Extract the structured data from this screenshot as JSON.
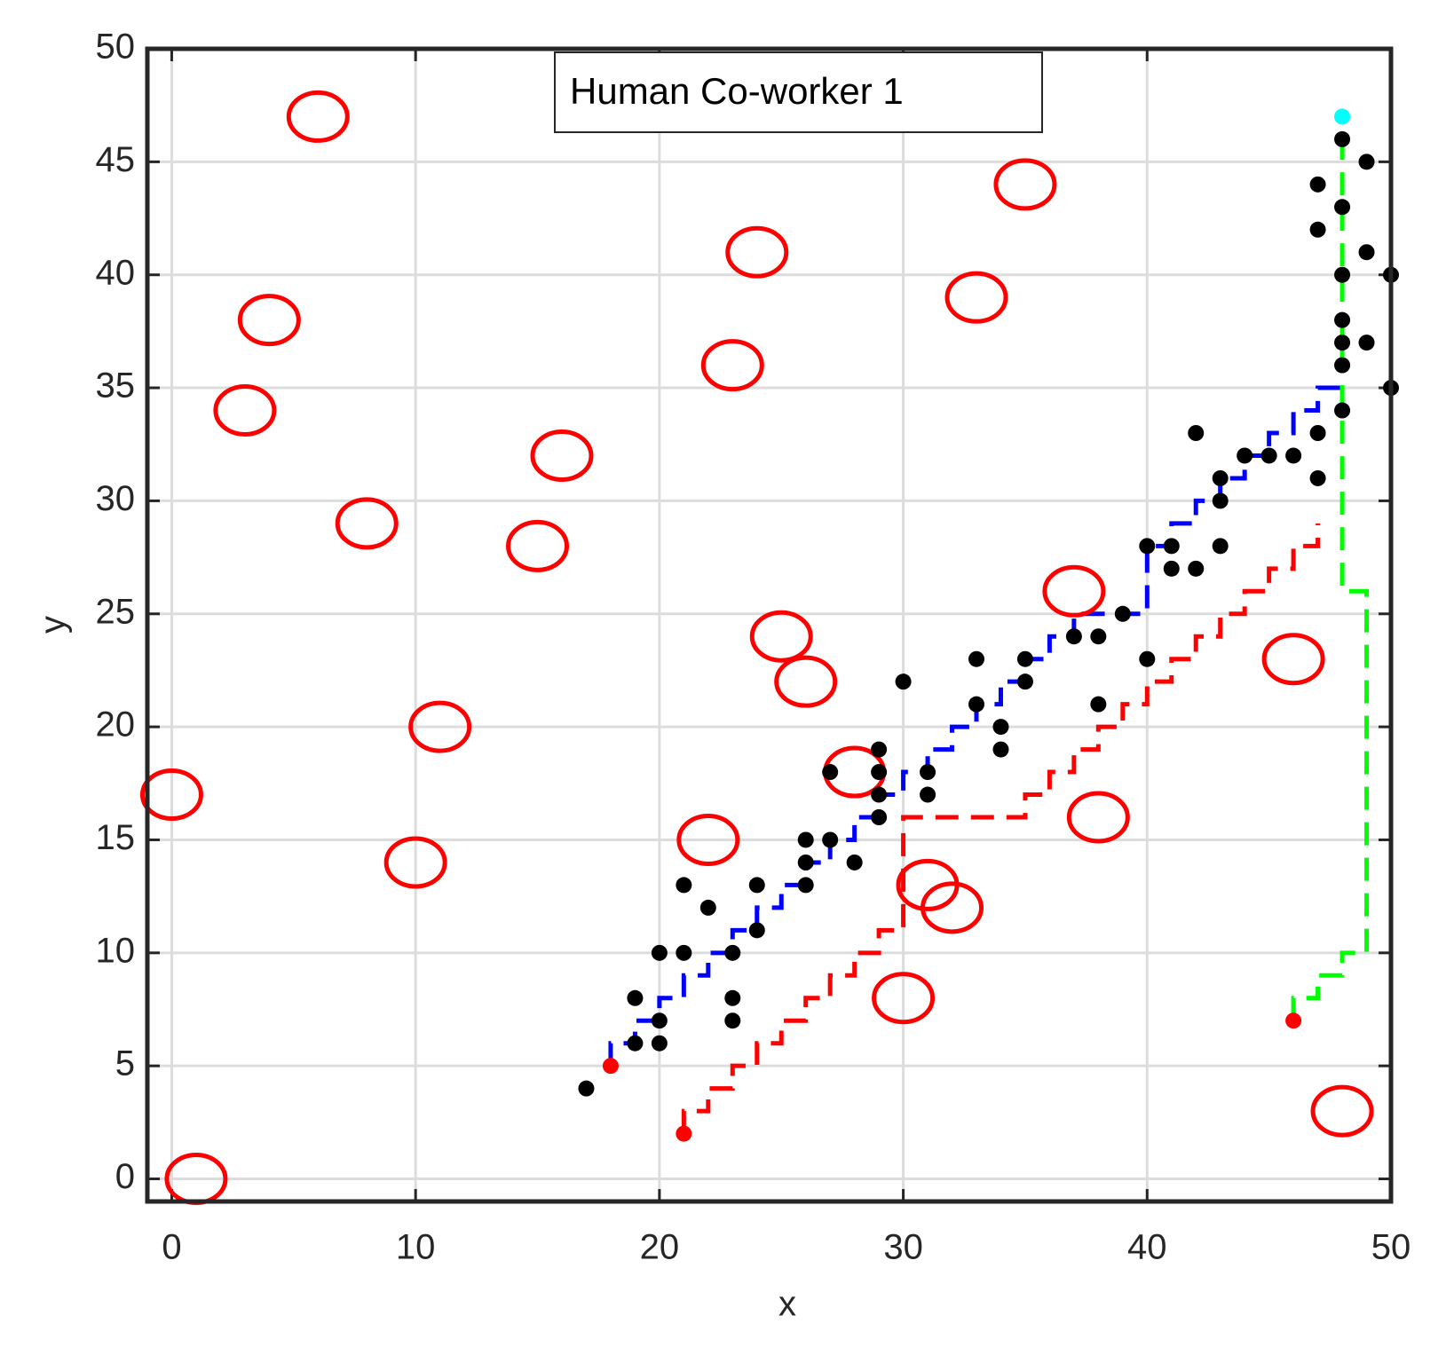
{
  "chart_data": {
    "type": "scatter",
    "annotation": "Human Co-worker 1",
    "x_label": "x",
    "y_label": "y",
    "xlim": [
      -1,
      50
    ],
    "ylim": [
      -1,
      50
    ],
    "xticks": [
      0,
      10,
      20,
      30,
      40,
      50
    ],
    "yticks": [
      0,
      5,
      10,
      15,
      20,
      25,
      30,
      35,
      40,
      45,
      50
    ],
    "grid": true,
    "series": [
      {
        "color": "#0000ff",
        "line": "dashed",
        "x": [
          18,
          18,
          19,
          19,
          20,
          20,
          21,
          21,
          22,
          22,
          23,
          23,
          24,
          24,
          25,
          25,
          26,
          26,
          27,
          27,
          28,
          28,
          29,
          29,
          30,
          30,
          31,
          31,
          32,
          32,
          33,
          33,
          34,
          34,
          35,
          35,
          36,
          36,
          37,
          37,
          40,
          40,
          41,
          41,
          42,
          42,
          43,
          43,
          44,
          44,
          45,
          45,
          46,
          46,
          47,
          47,
          48
        ],
        "values": [
          5,
          6,
          6,
          7,
          7,
          8,
          8,
          9,
          9,
          10,
          10,
          11,
          11,
          12,
          12,
          13,
          13,
          14,
          14,
          15,
          15,
          16,
          16,
          17,
          17,
          18,
          18,
          19,
          19,
          20,
          20,
          21,
          21,
          22,
          22,
          23,
          23,
          24,
          24,
          25,
          25,
          28,
          28,
          29,
          29,
          30,
          30,
          31,
          31,
          32,
          32,
          33,
          33,
          34,
          34,
          35,
          35
        ]
      },
      {
        "color": "#ff0000",
        "line": "dashed",
        "x": [
          21,
          21,
          22,
          22,
          23,
          23,
          24,
          24,
          25,
          25,
          26,
          26,
          27,
          27,
          28,
          28,
          29,
          29,
          30,
          30,
          35,
          35,
          36,
          36,
          37,
          37,
          38,
          38,
          39,
          39,
          40,
          40,
          41,
          41,
          42,
          42,
          43,
          43,
          44,
          44,
          45,
          45,
          46,
          46,
          47,
          47
        ],
        "values": [
          2,
          3,
          3,
          4,
          4,
          5,
          5,
          6,
          6,
          7,
          7,
          8,
          8,
          9,
          9,
          10,
          10,
          11,
          11,
          16,
          16,
          17,
          17,
          18,
          18,
          19,
          19,
          20,
          20,
          21,
          21,
          22,
          22,
          23,
          23,
          24,
          24,
          25,
          25,
          26,
          26,
          27,
          27,
          28,
          28,
          29
        ]
      },
      {
        "color": "#00ff00",
        "line": "dashed",
        "x": [
          46,
          46,
          47,
          47,
          48,
          48,
          49,
          49,
          48,
          48
        ],
        "values": [
          7,
          8,
          8,
          9,
          9,
          10,
          10,
          26,
          26,
          47
        ]
      },
      {
        "color": "#ff0000",
        "marker": "open-circle",
        "x": [
          1,
          0,
          10,
          11,
          3,
          4,
          6,
          8,
          15,
          16,
          23,
          24,
          25,
          26,
          22,
          28,
          30,
          31,
          32,
          33,
          35,
          37,
          38,
          46,
          48
        ],
        "values": [
          0,
          17,
          14,
          20,
          34,
          38,
          47,
          29,
          28,
          32,
          36,
          41,
          24,
          22,
          15,
          18,
          8,
          13,
          12,
          39,
          44,
          26,
          16,
          23,
          3
        ]
      },
      {
        "color": "#000000",
        "marker": "dot",
        "x": [
          17,
          19,
          19,
          20,
          20,
          20,
          21,
          21,
          22,
          23,
          23,
          23,
          24,
          24,
          26,
          26,
          26,
          27,
          27,
          28,
          29,
          29,
          29,
          29,
          30,
          31,
          31,
          33,
          33,
          34,
          34,
          35,
          35,
          37,
          38,
          38,
          39,
          40,
          40,
          41,
          41,
          42,
          42,
          43,
          43,
          43,
          44,
          45,
          46,
          47,
          47,
          47,
          47,
          48,
          48,
          48,
          48,
          48,
          48,
          48,
          49,
          49,
          49,
          50,
          50
        ],
        "values": [
          4,
          8,
          6,
          6,
          7,
          10,
          10,
          13,
          12,
          10,
          8,
          7,
          13,
          11,
          15,
          14,
          13,
          18,
          15,
          14,
          19,
          18,
          17,
          16,
          22,
          18,
          17,
          23,
          21,
          20,
          19,
          23,
          22,
          24,
          24,
          21,
          25,
          28,
          23,
          28,
          27,
          33,
          27,
          31,
          30,
          28,
          32,
          32,
          32,
          33,
          31,
          44,
          42,
          46,
          43,
          40,
          38,
          37,
          36,
          34,
          45,
          41,
          37,
          40,
          35
        ]
      },
      {
        "color": "#ff0000",
        "marker": "small-dot",
        "x": [
          18,
          21,
          46
        ],
        "values": [
          5,
          2,
          7
        ]
      },
      {
        "color": "#00ffff",
        "marker": "small-dot",
        "x": [
          48
        ],
        "values": [
          47
        ]
      }
    ]
  }
}
